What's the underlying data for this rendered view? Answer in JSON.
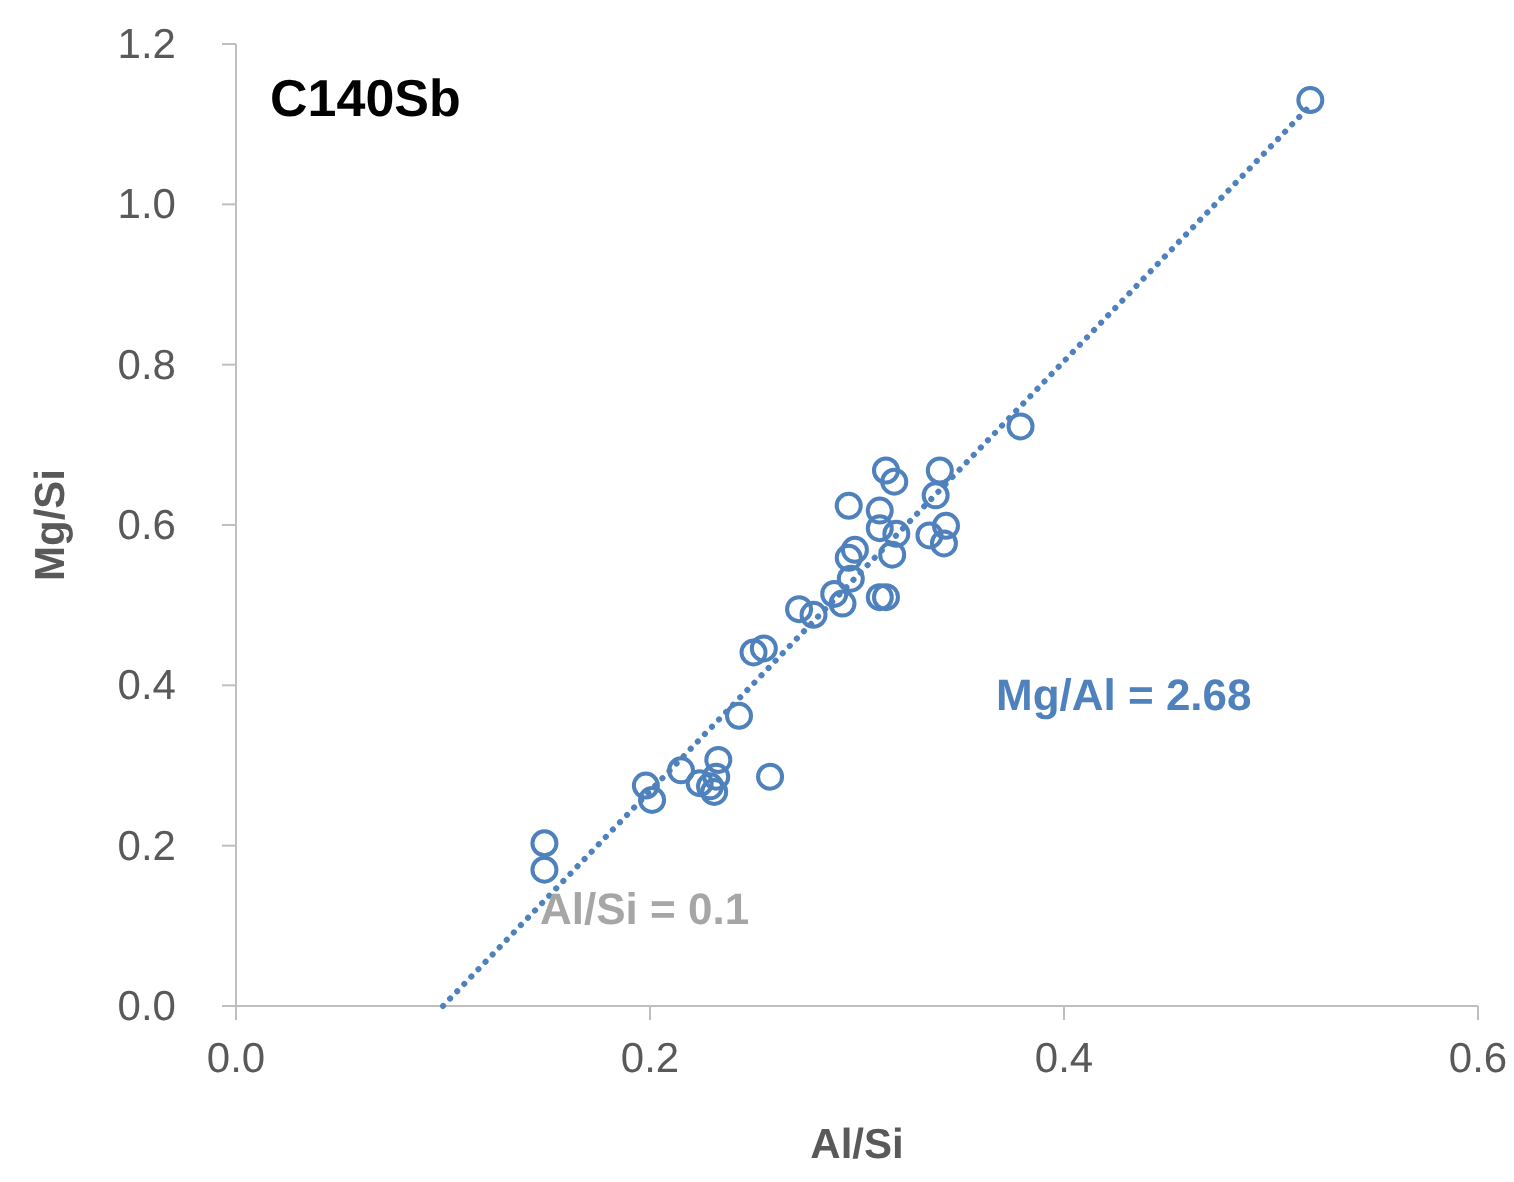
{
  "chart_data": {
    "type": "scatter",
    "title": "C140Sb",
    "xlabel": "Al/Si",
    "ylabel": "Mg/Si",
    "xlim": [
      0,
      0.6
    ],
    "xticks": [
      {
        "value": 0,
        "label": "0.0"
      },
      0.2,
      0.4,
      0.6
    ],
    "ylim": [
      0,
      1.2
    ],
    "yticks": [
      {
        "value": 0,
        "label": "0.0"
      },
      0.2,
      0.4,
      0.6,
      0.8,
      {
        "value": 1,
        "label": "1.0"
      },
      1.2
    ],
    "grid": false,
    "marker": "circle",
    "series": [
      {
        "color": "#4f81bd",
        "x": [
          0.314,
          0.318,
          0.34,
          0.296,
          0.311,
          0.338,
          0.311,
          0.319,
          0.343,
          0.335,
          0.342,
          0.317,
          0.299,
          0.296,
          0.297,
          0.289,
          0.293,
          0.311,
          0.314,
          0.272,
          0.279,
          0.25,
          0.255,
          0.243,
          0.215,
          0.224,
          0.233,
          0.232,
          0.229,
          0.231,
          0.258,
          0.198,
          0.201,
          0.149,
          0.149,
          0.519,
          0.379
        ],
        "values": [
          0.668,
          0.654,
          0.668,
          0.624,
          0.618,
          0.637,
          0.596,
          0.589,
          0.599,
          0.587,
          0.577,
          0.563,
          0.569,
          0.559,
          0.533,
          0.514,
          0.502,
          0.51,
          0.51,
          0.495,
          0.488,
          0.441,
          0.446,
          0.362,
          0.294,
          0.278,
          0.307,
          0.286,
          0.274,
          0.267,
          0.286,
          0.275,
          0.257,
          0.203,
          0.17,
          1.13,
          0.723
        ]
      },
      {
        "type": "line",
        "color": "#4f81bd",
        "line_style": "dotted",
        "marker": "none",
        "x": [
          0.1,
          0.52
        ],
        "values": [
          0,
          1.126
        ]
      }
    ],
    "annotations": [
      "Mg/Al = 2.68",
      "Al/Si = 0.1"
    ]
  }
}
